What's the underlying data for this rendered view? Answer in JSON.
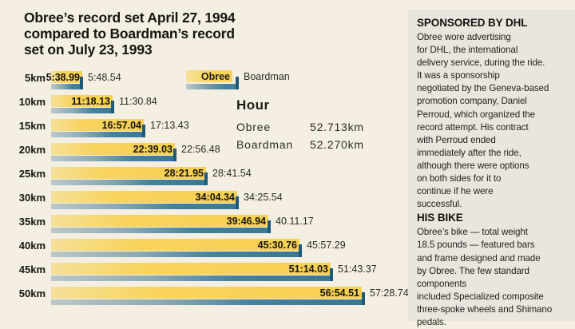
{
  "title": "Obree’s record set April 27, 1994\ncompared to Boardman’s record\nset on July 23, 1993",
  "legend": {
    "obree": "Obree",
    "boardman": "Boardman"
  },
  "hour": {
    "heading": "Hour",
    "rows": [
      {
        "name": "Obree",
        "value": "52.713km"
      },
      {
        "name": "Boardman",
        "value": "52.270km"
      }
    ]
  },
  "chart_data": {
    "type": "bar",
    "orientation": "horizontal",
    "title": "Obree’s record set April 27, 1994 compared to Boardman’s record set on July 23, 1993",
    "categories": [
      "5km",
      "10km",
      "15km",
      "20km",
      "25km",
      "30km",
      "35km",
      "40km",
      "45km",
      "50km"
    ],
    "value_unit": "time (min:sec)",
    "series": [
      {
        "name": "Obree",
        "labels": [
          "5:38.99",
          "11:18.13",
          "16:57.04",
          "22:39.03",
          "28:21.95",
          "34:04.34",
          "39:46.94",
          "45:30.76",
          "51:14.03",
          "56:54.51"
        ],
        "seconds": [
          338.99,
          678.13,
          1017.04,
          1359.03,
          1701.95,
          2044.34,
          2386.94,
          2730.76,
          3074.03,
          3414.51
        ]
      },
      {
        "name": "Boardman",
        "labels": [
          "5:48.54",
          "11:30.84",
          "17:13.43",
          "22:56.48",
          "28:41.54",
          "34:25.54",
          "40.11.17",
          "45:57.29",
          "51:43.37",
          "57:28.74"
        ],
        "seconds": [
          348.54,
          690.84,
          1033.43,
          1376.48,
          1721.54,
          2065.54,
          2411.17,
          2757.29,
          3103.37,
          3448.74
        ]
      }
    ],
    "hour_record": {
      "heading": "Hour",
      "obree_km": 52.713,
      "boardman_km": 52.27
    },
    "grid": false,
    "legend_position": "top, right of 5km bar"
  },
  "sidebar": {
    "heading_sponsor": "SPONSORED BY DHL",
    "para_sponsor": "Obree wore advertising\nfor DHL, the international\ndelivery service, during the ride.\nIt was a sponsorship\nnegotiated by the Geneva-based\npromotion company, Daniel\nPerroud, which organized the\nrecord attempt. His contract\nwith Perroud ended\nimmediately after the ride,\nalthough there were options\non both sides for it to\ncontinue if he were\nsuccessful.",
    "heading_bike": "HIS BIKE",
    "para_bike": "Obree’s bike — total weight\n18.5 pounds — featured bars\nand frame designed and made\nby Obree. The few standard\ncomponents\nincluded Specialized composite\nthree-spoke wheels and Shimano\npedals."
  },
  "colors": {
    "background": "#f4efe2",
    "sidebar_panel": "#e9e6dd",
    "obree_bar": "#f8d45c",
    "obree_bar_fade": "#f5e09a",
    "boardman_bar": "#45809d",
    "boardman_bar_fade": "#bcc9c8",
    "boardman_end_cap": "#1d5a78",
    "text": "#1d1d1b"
  }
}
